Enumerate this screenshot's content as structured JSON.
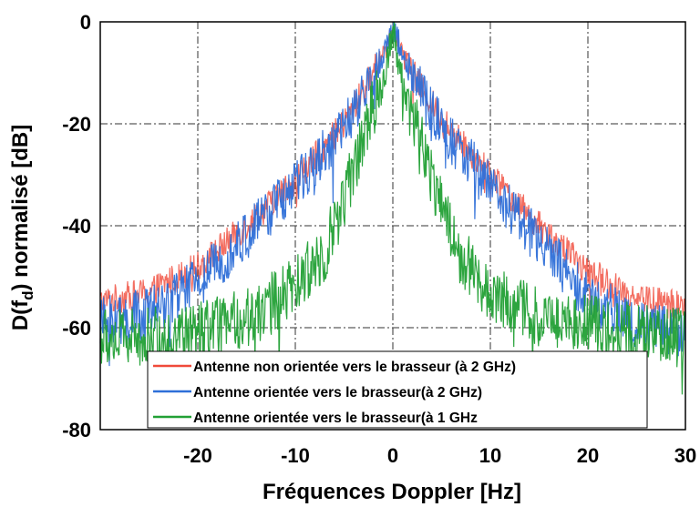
{
  "chart_data": {
    "type": "line",
    "xlabel": "Fréquences Doppler [Hz]",
    "ylabel_main": "D(f",
    "ylabel_sub": "d",
    "ylabel_rest": ") normalisé [dB]",
    "xlim": [
      -30,
      30
    ],
    "ylim": [
      -80,
      0
    ],
    "x_ticks": [
      -20,
      -10,
      0,
      10,
      20,
      30
    ],
    "y_ticks": [
      0,
      -20,
      -40,
      -60,
      -80
    ],
    "grid": true,
    "legend_position": "bottom-center",
    "series": [
      {
        "name": "Antenne non orientée vers le brasseur (à 2 GHz)",
        "color": "#f04a3a",
        "x": [
          -30,
          -25,
          -20,
          -15,
          -10,
          -5,
          -2,
          0,
          2,
          5,
          10,
          15,
          20,
          25,
          30
        ],
        "values": [
          -55,
          -53,
          -48,
          -40,
          -31,
          -20,
          -10,
          -1,
          -10,
          -19,
          -30,
          -40,
          -49,
          -54,
          -56
        ],
        "noise": 3
      },
      {
        "name": "Antenne orientée vers le brasseur(à 2 GHz)",
        "color": "#2e6fd8",
        "x": [
          -30,
          -25,
          -20,
          -15,
          -10,
          -5,
          -2,
          0,
          2,
          5,
          10,
          15,
          20,
          25,
          30
        ],
        "values": [
          -59,
          -57,
          -51,
          -42,
          -32,
          -21,
          -11,
          -1,
          -11,
          -21,
          -32,
          -43,
          -54,
          -59,
          -61
        ],
        "noise": 5
      },
      {
        "name": "Antenne orientée vers le brasseur(à 1 GHz",
        "color": "#22a035",
        "x": [
          -30,
          -25,
          -20,
          -15,
          -10,
          -7,
          -5,
          -3,
          -1,
          0,
          1,
          3,
          5,
          7,
          10,
          15,
          20,
          25,
          30
        ],
        "values": [
          -62,
          -62,
          -61,
          -58,
          -52,
          -45,
          -35,
          -22,
          -12,
          -1,
          -12,
          -24,
          -36,
          -46,
          -53,
          -58,
          -59,
          -61,
          -62
        ],
        "noise": 6
      }
    ]
  }
}
